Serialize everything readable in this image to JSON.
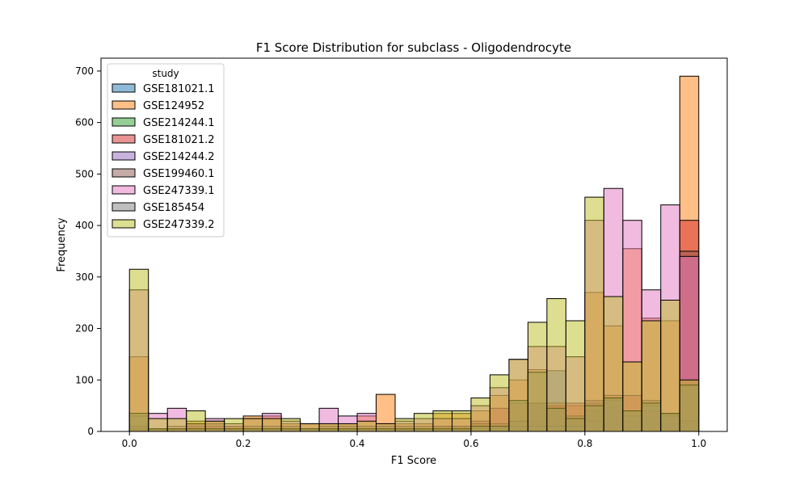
{
  "chart_data": {
    "type": "bar",
    "title": "F1 Score Distribution for subclass - Oligodendrocyte",
    "xlabel": "F1 Score",
    "ylabel": "Frequency",
    "xlim": [
      -0.05,
      1.05
    ],
    "ylim": [
      0,
      725
    ],
    "xticks": [
      0.0,
      0.2,
      0.4,
      0.6,
      0.8,
      1.0
    ],
    "xtick_labels": [
      "0.0",
      "0.2",
      "0.4",
      "0.6",
      "0.8",
      "1.0"
    ],
    "yticks": [
      0,
      100,
      200,
      300,
      400,
      500,
      600,
      700
    ],
    "ytick_labels": [
      "0",
      "100",
      "200",
      "300",
      "400",
      "500",
      "600",
      "700"
    ],
    "bins": [
      0.0,
      0.0333,
      0.0667,
      0.1,
      0.1333,
      0.1667,
      0.2,
      0.2333,
      0.2667,
      0.3,
      0.3333,
      0.3667,
      0.4,
      0.4333,
      0.4667,
      0.5,
      0.5333,
      0.5667,
      0.6,
      0.6333,
      0.6667,
      0.7,
      0.7333,
      0.7667,
      0.8,
      0.8333,
      0.8667,
      0.9,
      0.9333,
      0.9667,
      1.0
    ],
    "legend": {
      "title": "study",
      "position": "top-left"
    },
    "series": [
      {
        "name": "GSE181021.1",
        "color": "#1f77b4",
        "values": [
          0,
          0,
          0,
          0,
          0,
          0,
          0,
          0,
          0,
          0,
          0,
          0,
          0,
          0,
          0,
          0,
          0,
          0,
          5,
          5,
          10,
          20,
          118,
          25,
          40,
          50,
          20,
          30,
          15,
          15,
          0
        ]
      },
      {
        "name": "GSE124952",
        "color": "#ff7f0e",
        "values": [
          145,
          5,
          5,
          20,
          20,
          10,
          30,
          30,
          15,
          15,
          15,
          15,
          30,
          72,
          15,
          15,
          35,
          35,
          40,
          70,
          100,
          120,
          55,
          50,
          270,
          205,
          355,
          220,
          215,
          690,
          0
        ]
      },
      {
        "name": "GSE214244.1",
        "color": "#2ca02c",
        "values": [
          5,
          0,
          0,
          0,
          0,
          0,
          0,
          0,
          0,
          0,
          0,
          0,
          0,
          0,
          0,
          0,
          0,
          0,
          0,
          0,
          0,
          0,
          0,
          0,
          0,
          0,
          0,
          0,
          0,
          0,
          0
        ]
      },
      {
        "name": "GSE181021.2",
        "color": "#d62728",
        "values": [
          10,
          5,
          5,
          10,
          10,
          5,
          5,
          5,
          5,
          5,
          5,
          5,
          5,
          5,
          5,
          5,
          10,
          10,
          20,
          45,
          55,
          55,
          50,
          55,
          55,
          70,
          70,
          40,
          35,
          410,
          0
        ]
      },
      {
        "name": "GSE214244.2",
        "color": "#9467bd",
        "values": [
          5,
          5,
          5,
          5,
          5,
          5,
          5,
          5,
          5,
          5,
          5,
          5,
          5,
          5,
          5,
          5,
          5,
          5,
          5,
          5,
          10,
          10,
          10,
          10,
          20,
          60,
          30,
          50,
          30,
          20,
          0
        ]
      },
      {
        "name": "GSE199460.1",
        "color": "#8c564b",
        "values": [
          30,
          5,
          10,
          15,
          15,
          10,
          10,
          10,
          10,
          5,
          10,
          10,
          10,
          10,
          10,
          10,
          10,
          10,
          15,
          15,
          20,
          55,
          45,
          30,
          60,
          65,
          40,
          60,
          35,
          350,
          0
        ]
      },
      {
        "name": "GSE247339.1",
        "color": "#e377c2",
        "values": [
          275,
          35,
          45,
          15,
          25,
          15,
          25,
          35,
          20,
          15,
          45,
          30,
          35,
          15,
          20,
          25,
          25,
          25,
          50,
          85,
          140,
          165,
          165,
          145,
          410,
          472,
          410,
          275,
          440,
          340,
          0
        ]
      },
      {
        "name": "GSE185454",
        "color": "#7f7f7f",
        "values": [
          35,
          5,
          5,
          5,
          5,
          5,
          5,
          5,
          5,
          5,
          5,
          5,
          5,
          5,
          5,
          5,
          5,
          5,
          10,
          10,
          60,
          115,
          45,
          25,
          50,
          65,
          40,
          55,
          35,
          90,
          0
        ]
      },
      {
        "name": "GSE247339.2",
        "color": "#bcbd22",
        "values": [
          315,
          25,
          25,
          40,
          20,
          25,
          25,
          25,
          25,
          15,
          15,
          15,
          20,
          15,
          25,
          35,
          40,
          40,
          65,
          110,
          140,
          212,
          258,
          215,
          455,
          262,
          135,
          215,
          255,
          100,
          0
        ]
      }
    ]
  }
}
